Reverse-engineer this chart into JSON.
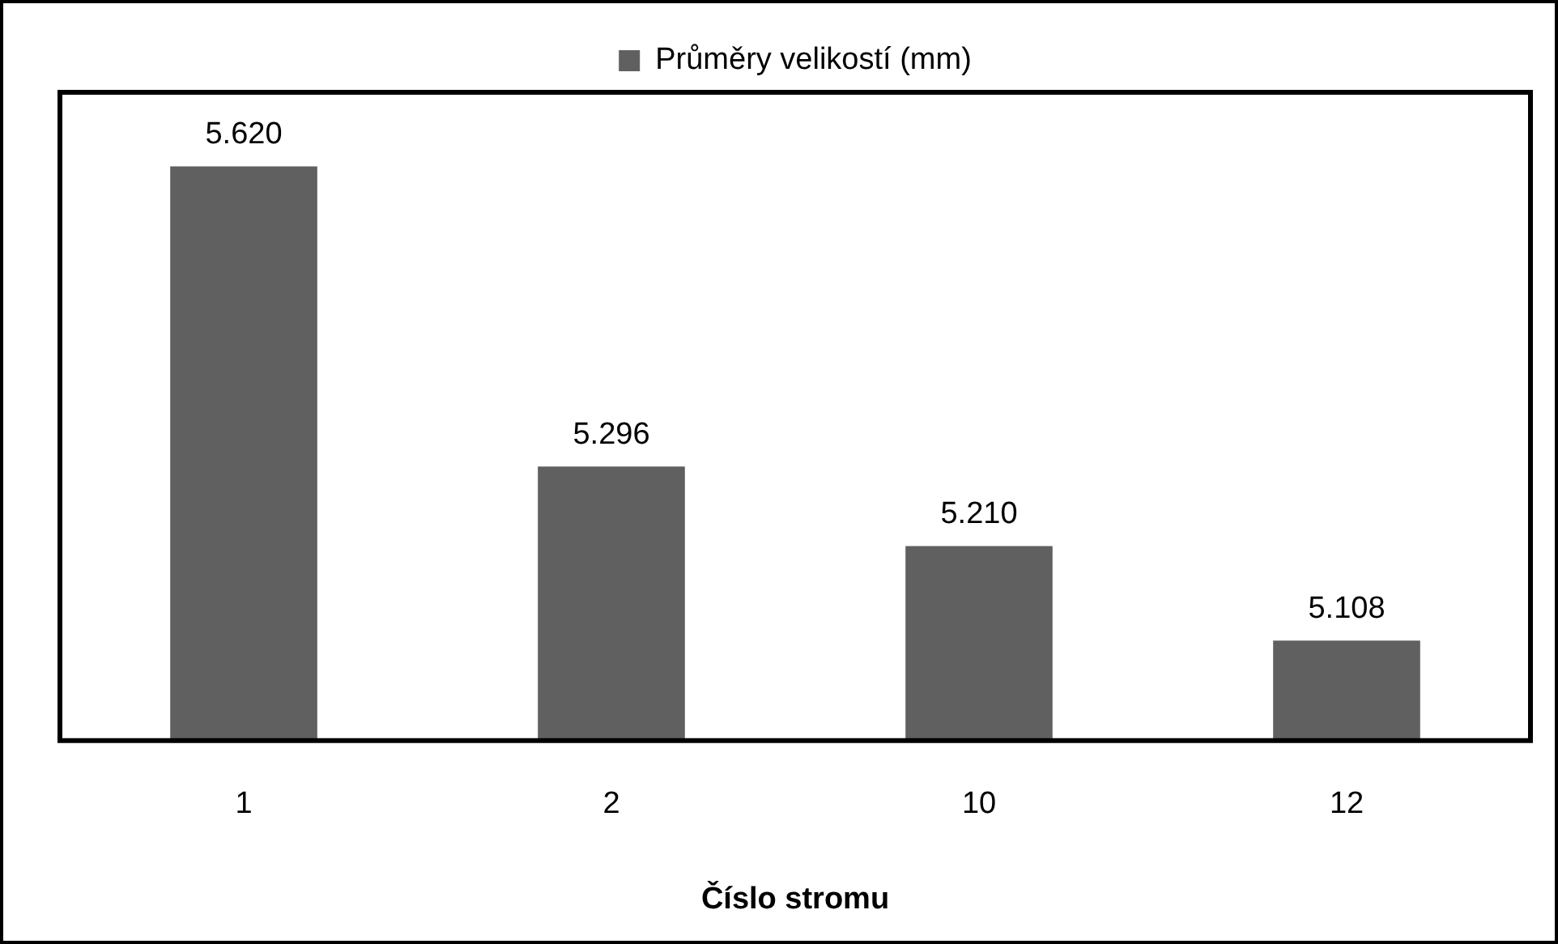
{
  "chart_data": {
    "type": "bar",
    "categories": [
      "1",
      "2",
      "10",
      "12"
    ],
    "series": [
      {
        "name": "Průměry velikostí (mm)",
        "color": "#606060",
        "values": [
          5.62,
          5.296,
          5.21,
          5.108
        ],
        "value_labels": [
          "5.620",
          "5.296",
          "5.210",
          "5.108"
        ]
      }
    ],
    "xlabel": "Číslo stromu",
    "tick_labels": "x",
    "legend": "top",
    "grid": false
  }
}
